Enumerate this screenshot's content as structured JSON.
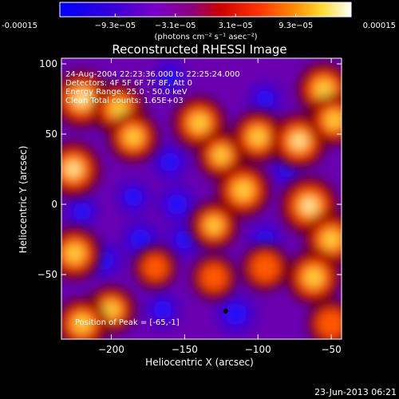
{
  "chart_data": {
    "type": "heatmap",
    "title": "Reconstructed RHESSI Image",
    "xlabel": "Heliocentric X (arcsec)",
    "ylabel": "Heliocentric Y (arcsec)",
    "xlim": [
      -234,
      -43
    ],
    "ylim": [
      -96,
      104
    ],
    "x_ticks": [
      -200,
      -150,
      -100,
      -50
    ],
    "y_ticks": [
      -50,
      0,
      50,
      100
    ],
    "colorbar": {
      "min": -0.00015,
      "max": 0.00015,
      "ticks": [
        -0.00015,
        -9.3e-05,
        -3.1e-05,
        3.1e-05,
        9.3e-05,
        0.00015
      ],
      "tick_labels": [
        "-0.00015",
        "−9.3e−05",
        "−3.1e−05",
        "3.1e−05",
        "9.3e−05",
        "0.00015"
      ],
      "units": "(photons cm⁻² s⁻¹ asec⁻²)",
      "colormap": "blue-purple-red-yellow-white"
    },
    "info_lines": [
      "24-Aug-2004 22:23:36.000 to 22:25:24.000",
      "Detectors: 4F 5F 6F 7F 8F, Att 0",
      "Energy Range: 25.0 - 50.0 keV",
      "Clean    Total counts: 1.65E+03"
    ],
    "peak_label": "Position of Peak = [-65,-1]",
    "marked_point": {
      "x": -122,
      "y": -76
    },
    "bright_sources": [
      {
        "x": -220,
        "y": 75,
        "value": 1.0
      },
      {
        "x": -195,
        "y": 68,
        "value": 0.75
      },
      {
        "x": -185,
        "y": 48,
        "value": 0.7
      },
      {
        "x": -226,
        "y": 25,
        "value": 0.9
      },
      {
        "x": -140,
        "y": 58,
        "value": 0.8
      },
      {
        "x": -125,
        "y": 35,
        "value": 0.6
      },
      {
        "x": -100,
        "y": 48,
        "value": 0.75
      },
      {
        "x": -72,
        "y": 45,
        "value": 0.9
      },
      {
        "x": -55,
        "y": 82,
        "value": 0.8
      },
      {
        "x": -48,
        "y": 60,
        "value": 0.7
      },
      {
        "x": -110,
        "y": 10,
        "value": 0.85
      },
      {
        "x": -65,
        "y": -1,
        "value": 1.0
      },
      {
        "x": -130,
        "y": -15,
        "value": 0.6
      },
      {
        "x": -50,
        "y": -25,
        "value": 0.8
      },
      {
        "x": -62,
        "y": -52,
        "value": 0.85
      },
      {
        "x": -95,
        "y": -45,
        "value": 0.55
      },
      {
        "x": -130,
        "y": -52,
        "value": 0.45
      },
      {
        "x": -225,
        "y": -35,
        "value": 0.8
      },
      {
        "x": -200,
        "y": -75,
        "value": 0.6
      },
      {
        "x": -170,
        "y": -45,
        "value": 0.35
      },
      {
        "x": -220,
        "y": -85,
        "value": 0.75
      },
      {
        "x": -50,
        "y": -85,
        "value": 0.55
      }
    ],
    "dark_sources": [
      {
        "x": -155,
        "y": 0,
        "value": -0.75
      },
      {
        "x": -185,
        "y": 5,
        "value": -0.55
      },
      {
        "x": -220,
        "y": -5,
        "value": -0.5
      },
      {
        "x": -180,
        "y": -25,
        "value": -0.8
      },
      {
        "x": -205,
        "y": -40,
        "value": -0.6
      },
      {
        "x": -150,
        "y": -25,
        "value": -0.6
      },
      {
        "x": -160,
        "y": 30,
        "value": -0.65
      },
      {
        "x": -115,
        "y": -78,
        "value": -0.9
      },
      {
        "x": -95,
        "y": -25,
        "value": -0.45
      },
      {
        "x": -95,
        "y": 75,
        "value": -0.45
      },
      {
        "x": -160,
        "y": 90,
        "value": -0.5
      },
      {
        "x": -80,
        "y": 25,
        "value": -0.4
      },
      {
        "x": -165,
        "y": -75,
        "value": -0.55
      }
    ]
  },
  "footer": {
    "timestamp": "23-Jun-2013 06:21"
  }
}
